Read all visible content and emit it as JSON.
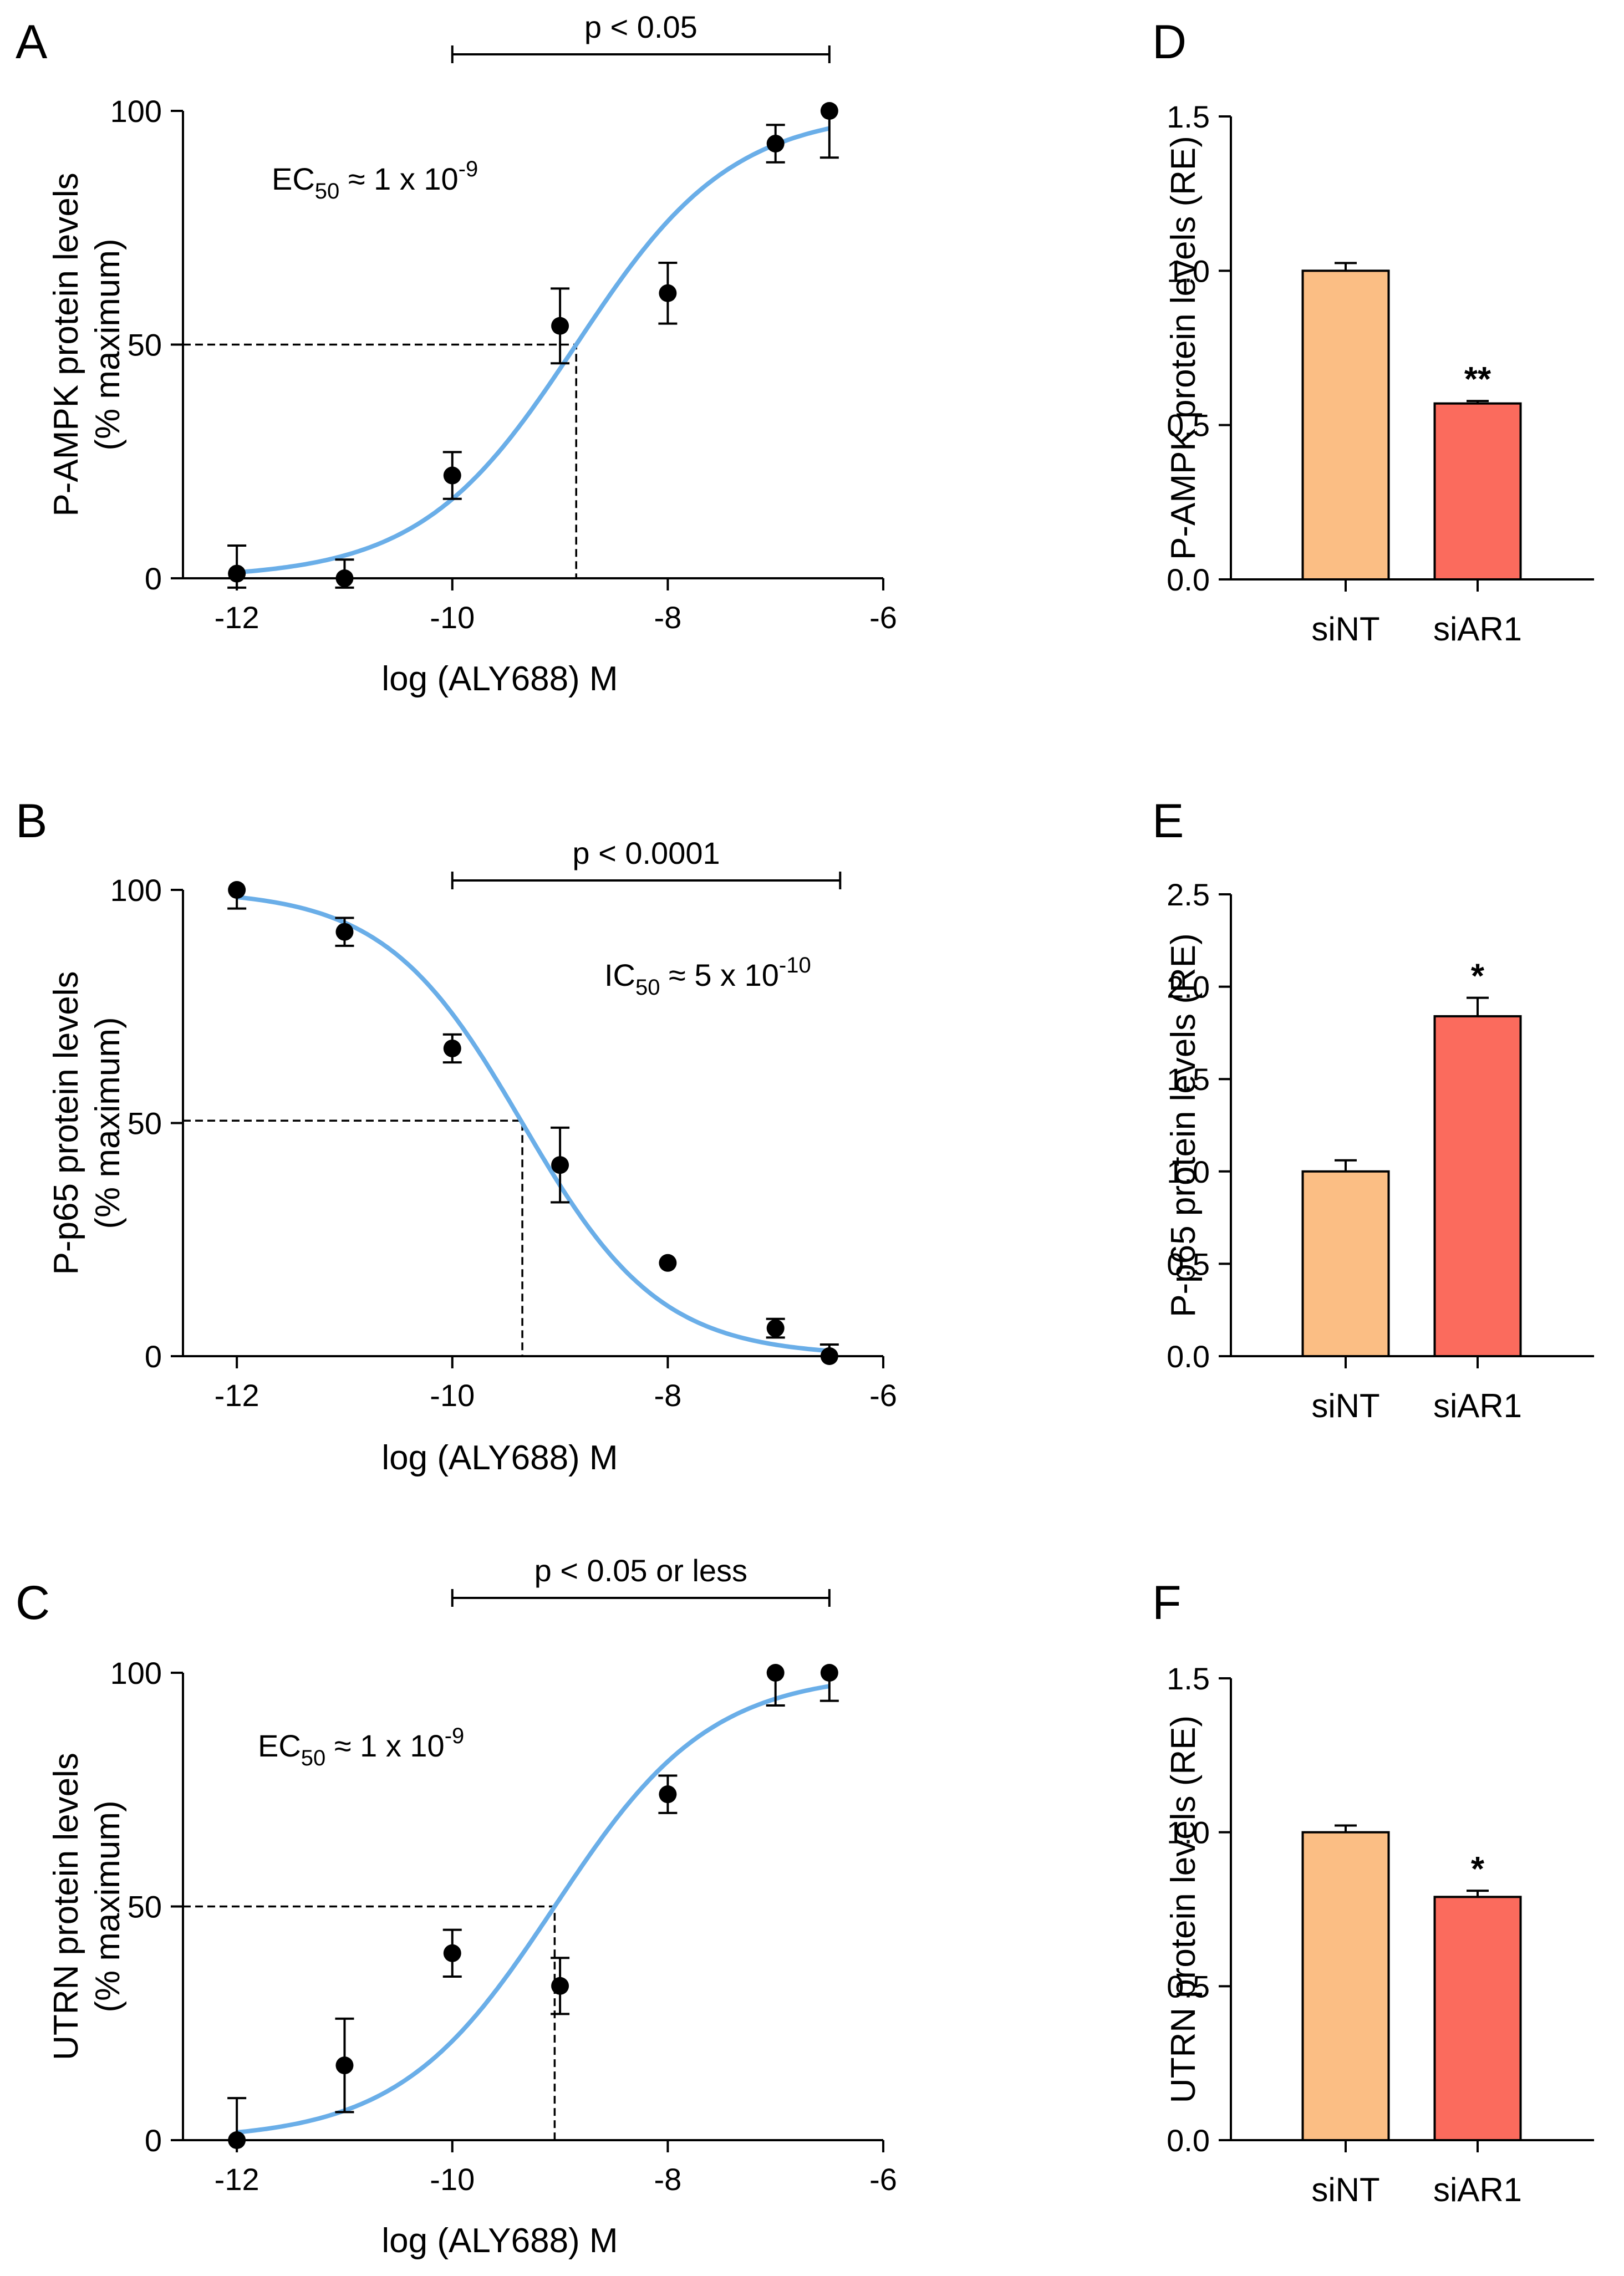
{
  "colors": {
    "curve": "#6aaee8",
    "siNT": "#fbbe84",
    "siAR1": "#fb6b5d"
  },
  "chart_data": [
    {
      "panel": "A",
      "type": "scatter",
      "fit": "sigmoidal dose-response",
      "ylabel": [
        "P-AMPK protein levels",
        "(% maximum)"
      ],
      "xlabel": "log (ALY688) M",
      "xlim": [
        -12.5,
        -6
      ],
      "ylim": [
        0,
        100
      ],
      "xticks": [
        -12,
        -10,
        -8,
        -6
      ],
      "yticks": [
        0,
        50,
        100
      ],
      "x": [
        -12,
        -11,
        -10,
        -9,
        -8,
        -7,
        -6.5
      ],
      "y": [
        1,
        0,
        22,
        54,
        61,
        93,
        100
      ],
      "err_low": [
        6,
        4,
        5,
        8,
        6.5,
        4,
        10
      ],
      "err_high": [
        6,
        4,
        5,
        8,
        6.5,
        4,
        0
      ],
      "fit_params": {
        "bottom": 0,
        "top": 100,
        "center": -8.85,
        "hill": 0.6
      },
      "ref_point": [
        -8.85,
        50
      ],
      "annotation": {
        "main": "EC",
        "sub": "50",
        "mid": " ≈ 1 x 10",
        "sup": "-9"
      },
      "bracket": {
        "from": -10,
        "to": -6.5,
        "label": "p < 0.05"
      }
    },
    {
      "panel": "B",
      "type": "scatter",
      "fit": "sigmoidal dose-response",
      "ylabel": [
        "P-p65 protein levels",
        "(% maximum)"
      ],
      "xlabel": "log (ALY688) M",
      "xlim": [
        -12.5,
        -6
      ],
      "ylim": [
        0,
        100
      ],
      "xticks": [
        -12,
        -10,
        -8,
        -6
      ],
      "yticks": [
        0,
        50,
        100
      ],
      "x": [
        -12,
        -11,
        -10,
        -9,
        -8,
        -7,
        -6.5
      ],
      "y": [
        100,
        91,
        66,
        41,
        20,
        6,
        0
      ],
      "err_low": [
        4,
        3,
        3,
        8,
        0,
        2,
        0
      ],
      "err_high": [
        0,
        3,
        3,
        8,
        0,
        2,
        2.5
      ],
      "fit_params": {
        "bottom": 0,
        "top": 100,
        "center": -9.35,
        "hill": -0.68
      },
      "ref_point": [
        -9.35,
        50.5
      ],
      "annotation": {
        "main": "IC",
        "sub": "50",
        "mid": " ≈ 5 x 10",
        "sup": "-10"
      },
      "bracket": {
        "from": -10,
        "to": -6.4,
        "label": "p < 0.0001"
      }
    },
    {
      "panel": "C",
      "type": "scatter",
      "fit": "sigmoidal dose-response",
      "ylabel": [
        "UTRN protein levels",
        "(% maximum)"
      ],
      "xlabel": "log (ALY688) M",
      "xlim": [
        -12.5,
        -6
      ],
      "ylim": [
        0,
        100
      ],
      "xticks": [
        -12,
        -10,
        -8,
        -6
      ],
      "yticks": [
        0,
        50,
        100
      ],
      "x": [
        -12,
        -11,
        -10,
        -9,
        -8,
        -7,
        -6.5
      ],
      "y": [
        0,
        16,
        40,
        33,
        74,
        100,
        100
      ],
      "err_low": [
        0,
        10,
        5,
        6,
        4,
        7,
        6
      ],
      "err_high": [
        9,
        10,
        5,
        6,
        4,
        0,
        0
      ],
      "fit_params": {
        "bottom": 0,
        "top": 100,
        "center": -9.05,
        "hill": 0.6
      },
      "ref_point": [
        -9.05,
        50
      ],
      "annotation": {
        "main": "EC",
        "sub": "50",
        "mid": " ≈ 1 x 10",
        "sup": "-9"
      },
      "bracket": {
        "from": -10,
        "to": -6.5,
        "label": "p < 0.05 or less"
      }
    },
    {
      "panel": "D",
      "type": "bar",
      "ylabel": "P-AMPK protein levels (RE)",
      "categories": [
        "siNT",
        "siAR1"
      ],
      "values": [
        1.0,
        0.57
      ],
      "errors": [
        0.025,
        0.008
      ],
      "ylim": [
        0,
        1.5
      ],
      "yticks": [
        "0.0",
        "0.5",
        "1.0",
        "1.5"
      ],
      "significance": [
        "",
        "**"
      ]
    },
    {
      "panel": "E",
      "type": "bar",
      "ylabel": "P-p65 protein levels (RE)",
      "categories": [
        "siNT",
        "siAR1"
      ],
      "values": [
        1.0,
        1.84
      ],
      "errors": [
        0.06,
        0.1
      ],
      "ylim": [
        0,
        2.5
      ],
      "yticks": [
        "0.0",
        "0.5",
        "1.0",
        "1.5",
        "2.0",
        "2.5"
      ],
      "significance": [
        "",
        "*"
      ]
    },
    {
      "panel": "F",
      "type": "bar",
      "ylabel": "UTRN protein levels (RE)",
      "categories": [
        "siNT",
        "siAR1"
      ],
      "values": [
        1.0,
        0.79
      ],
      "errors": [
        0.022,
        0.02
      ],
      "ylim": [
        0,
        1.5
      ],
      "yticks": [
        "0.0",
        "0.5",
        "1.0",
        "1.5"
      ],
      "significance": [
        "",
        "*"
      ]
    }
  ]
}
